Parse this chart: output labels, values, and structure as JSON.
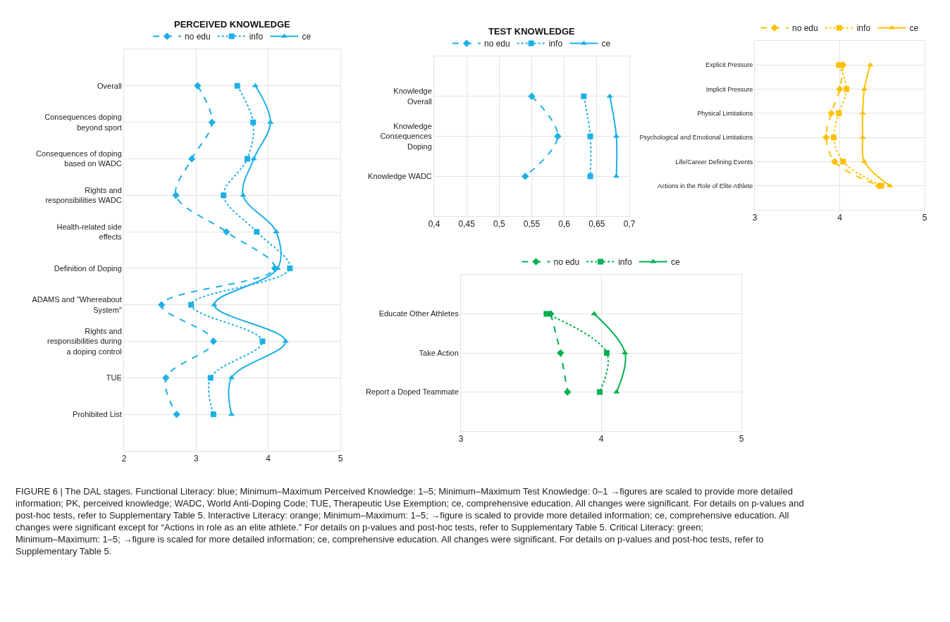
{
  "chart_data": [
    {
      "type": "line",
      "title": "PERCEIVED KNOWLEDGE",
      "orientation": "horizontal",
      "categories": [
        "Overall",
        "Consequences doping beyond sport",
        "Consequences of doping based on WADC",
        "Rights and responsibilities WADC",
        "Health-related side effects",
        "Definition of Doping",
        "ADAMS and \"Whereabout System\"",
        "Rights and responsibilities during a doping control",
        "TUE",
        "Prohibited List"
      ],
      "series": [
        {
          "name": "no edu",
          "color": "#1cb0e6",
          "marker": "diamond",
          "line_style": "dashed",
          "values": [
            3.02,
            3.22,
            2.94,
            2.72,
            3.42,
            4.09,
            2.52,
            3.24,
            2.58,
            2.73
          ]
        },
        {
          "name": "info",
          "color": "#1cb0e6",
          "marker": "square",
          "line_style": "dotted",
          "values": [
            3.57,
            3.79,
            3.71,
            3.38,
            3.84,
            4.3,
            2.93,
            3.92,
            3.2,
            3.24
          ]
        },
        {
          "name": "ce",
          "color": "#1cb0e6",
          "marker": "triangle",
          "line_style": "solid",
          "values": [
            3.82,
            4.03,
            3.8,
            3.65,
            4.11,
            4.13,
            3.25,
            4.24,
            3.49,
            3.49
          ]
        }
      ],
      "xlim": [
        2,
        5
      ],
      "xticks": [
        2,
        3,
        4,
        5
      ],
      "grid": true,
      "legend": "top"
    },
    {
      "type": "line",
      "title": "TEST KNOWLEDGE",
      "orientation": "horizontal",
      "categories": [
        "Knowledge Overall",
        "Knowledge Consequences Doping",
        "Knowledge WADC"
      ],
      "series": [
        {
          "name": "no edu",
          "color": "#1cb0e6",
          "marker": "diamond",
          "line_style": "dashed",
          "values": [
            0.55,
            0.59,
            0.54
          ]
        },
        {
          "name": "info",
          "color": "#1cb0e6",
          "marker": "square",
          "line_style": "dotted",
          "values": [
            0.63,
            0.64,
            0.64
          ]
        },
        {
          "name": "ce",
          "color": "#1cb0e6",
          "marker": "triangle",
          "line_style": "solid",
          "values": [
            0.67,
            0.68,
            0.68
          ]
        }
      ],
      "xlim": [
        0.4,
        0.7
      ],
      "xticks": [
        {
          "value": 0.4,
          "label": "0,4"
        },
        {
          "value": 0.45,
          "label": "0,45"
        },
        {
          "value": 0.5,
          "label": "0,5"
        },
        {
          "value": 0.55,
          "label": "0,55"
        },
        {
          "value": 0.6,
          "label": "0,6"
        },
        {
          "value": 0.65,
          "label": "0,65"
        },
        {
          "value": 0.7,
          "label": "0,7"
        }
      ],
      "grid": true,
      "legend": "top"
    },
    {
      "type": "line",
      "orientation": "horizontal",
      "categories": [
        "Explicit Pressure",
        "Implicit Pressure",
        "Physical Limitations",
        "Psychological and Emotional Limitations",
        "Life/Career Defining Events",
        "Actions in the Role of Elite Athlete"
      ],
      "series": [
        {
          "name": "no edu",
          "color": "#ffc000",
          "marker": "diamond",
          "line_style": "dashed",
          "values": [
            4.04,
            4.0,
            3.9,
            3.84,
            3.94,
            4.46
          ]
        },
        {
          "name": "info",
          "color": "#ffc000",
          "marker": "square",
          "line_style": "dotted",
          "values": [
            3.99,
            4.08,
            3.99,
            3.93,
            4.04,
            4.49
          ]
        },
        {
          "name": "ce",
          "color": "#ffc000",
          "marker": "triangle",
          "line_style": "solid",
          "values": [
            4.36,
            4.29,
            4.27,
            4.27,
            4.29,
            4.59
          ]
        }
      ],
      "xlim": [
        3,
        5
      ],
      "xticks": [
        3,
        4,
        5
      ],
      "grid": true,
      "legend": "top"
    },
    {
      "type": "line",
      "orientation": "horizontal",
      "categories": [
        "Educate Other Athletes",
        "Take Action",
        "Report a Doped Teammate"
      ],
      "series": [
        {
          "name": "no edu",
          "color": "#00b050",
          "marker": "diamond",
          "line_style": "dashed",
          "values": [
            3.64,
            3.71,
            3.76
          ]
        },
        {
          "name": "info",
          "color": "#00b050",
          "marker": "square",
          "line_style": "dotted",
          "values": [
            3.61,
            4.04,
            3.99
          ]
        },
        {
          "name": "ce",
          "color": "#00b050",
          "marker": "triangle",
          "line_style": "solid",
          "values": [
            3.95,
            4.17,
            4.11
          ]
        }
      ],
      "xlim": [
        3,
        5
      ],
      "xticks": [
        3,
        4,
        5
      ],
      "grid": true,
      "legend": "top",
      "annotations": [
        "FIGURE 6 | The DAL stages. Functional Literacy: blue; Minimum–Maximum Perceived Knowledge: 1–5; Minimum–Maximum Test Knowledge: 0–1 →figures are scaled to provide more detailed information; PK, perceived knowledge; WADC, World Anti-Doping Code; TUE, Therapeutic Use Exemption; ce, comprehensive education. All changes were significant. For details on p-values and post-hoc tests, refer to Supplementary Table 5. Interactive Literacy: orange; Minimum–Maximum: 1–5; →figure is scaled to provide more detailed information; ce, comprehensive education. All changes were significant except for “Actions in role as an elite athlete.” For details on p-values and post-hoc tests, refer to Supplementary Table 5. Critical Literacy: green; Minimum–Maximum: 1–5; →figure is scaled for more detailed information; ce, comprehensive education. All changes were significant. For details on p-values and post-hoc tests, refer to Supplementary Table 5."
      ]
    }
  ]
}
